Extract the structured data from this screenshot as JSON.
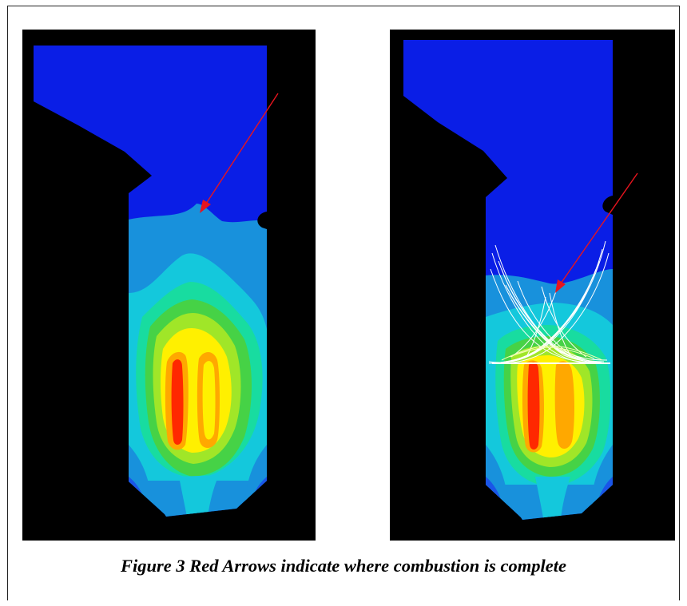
{
  "figure": {
    "caption": "Figure 3  Red Arrows indicate where combustion is complete"
  },
  "colors": {
    "background": "#000000",
    "level_1": "#0a1ee6",
    "level_2": "#1a55e8",
    "level_3": "#1891dc",
    "level_4": "#14c8dc",
    "level_5": "#18dca0",
    "level_6": "#46d246",
    "level_7": "#a0e628",
    "level_8": "#fff000",
    "level_9": "#ffa800",
    "level_10": "#ff2800",
    "arrow": "#e8141e",
    "particle_tracks": "#ffffff"
  }
}
